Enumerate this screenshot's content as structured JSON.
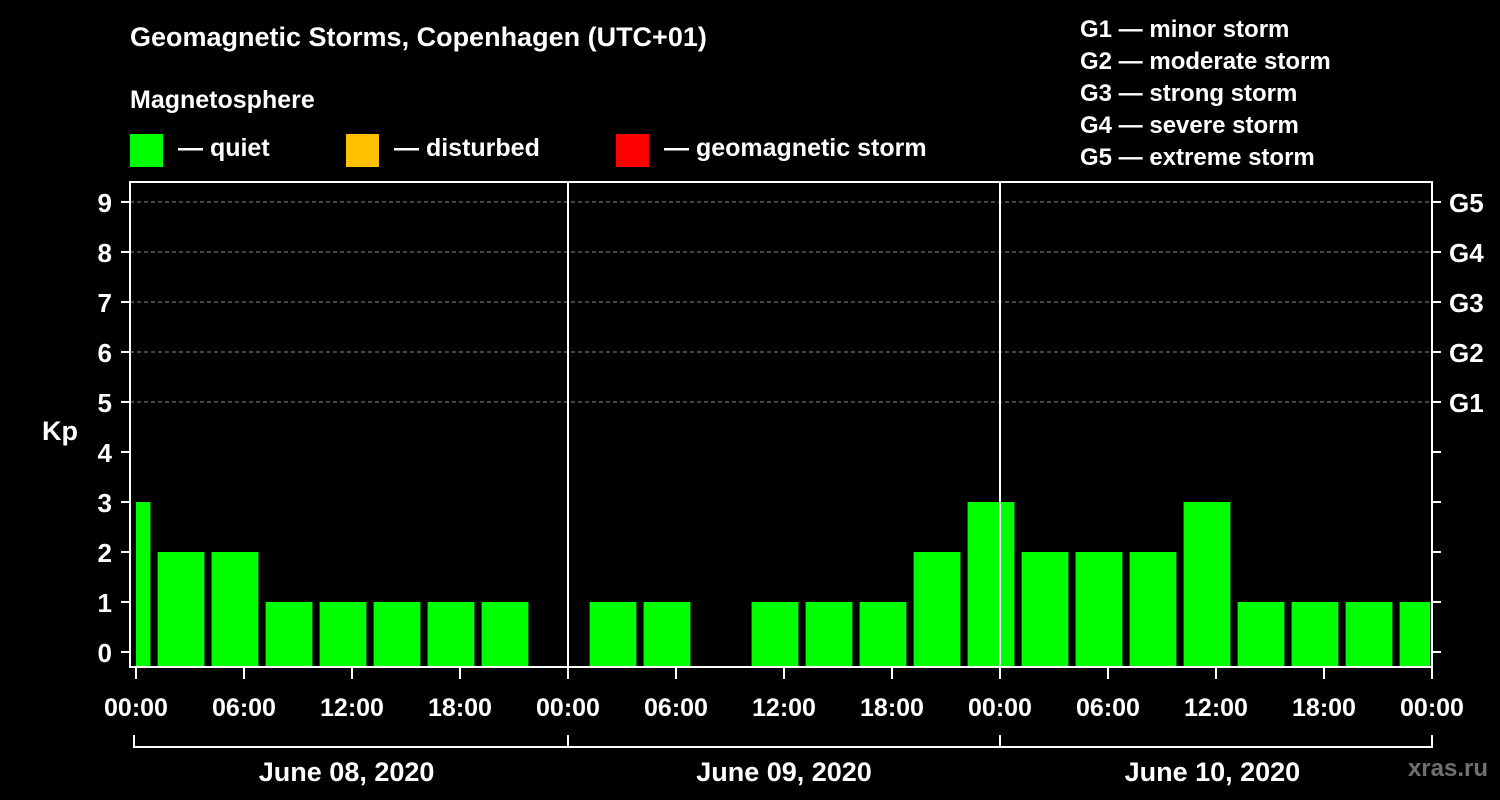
{
  "header": {
    "title": "Geomagnetic Storms, Copenhagen (UTC+01)",
    "subtitle": "Magnetosphere"
  },
  "legend": [
    {
      "label": "— quiet",
      "color": "#00ff00"
    },
    {
      "label": "— disturbed",
      "color": "#ffc000"
    },
    {
      "label": "— geomagnetic storm",
      "color": "#ff0000"
    }
  ],
  "storm_scale": [
    "G1 — minor storm",
    "G2 — moderate storm",
    "G3 — strong storm",
    "G4 — severe storm",
    "G5 — extreme storm"
  ],
  "watermark": "xras.ru",
  "chart_data": {
    "type": "bar",
    "title": "Geomagnetic Storms, Copenhagen (UTC+01)",
    "ylabel": "Kp",
    "ylim": [
      0,
      9
    ],
    "yticks": [
      0,
      1,
      2,
      3,
      4,
      5,
      6,
      7,
      8,
      9
    ],
    "right_axis": [
      {
        "kp": 5,
        "label": "G1"
      },
      {
        "kp": 6,
        "label": "G2"
      },
      {
        "kp": 7,
        "label": "G3"
      },
      {
        "kp": 8,
        "label": "G4"
      },
      {
        "kp": 9,
        "label": "G5"
      }
    ],
    "xlim_hours": [
      -0.6,
      71.6
    ],
    "day_boundaries_hours": [
      24,
      48
    ],
    "xticks": [
      {
        "hour": 0,
        "label": "00:00"
      },
      {
        "hour": 6,
        "label": "06:00"
      },
      {
        "hour": 12,
        "label": "12:00"
      },
      {
        "hour": 18,
        "label": "18:00"
      },
      {
        "hour": 24,
        "label": "00:00"
      },
      {
        "hour": 30,
        "label": "06:00"
      },
      {
        "hour": 36,
        "label": "12:00"
      },
      {
        "hour": 42,
        "label": "18:00"
      },
      {
        "hour": 48,
        "label": "00:00"
      },
      {
        "hour": 54,
        "label": "06:00"
      },
      {
        "hour": 60,
        "label": "12:00"
      },
      {
        "hour": 66,
        "label": "18:00"
      },
      {
        "hour": 72,
        "label": "00:00"
      }
    ],
    "days": [
      {
        "label": "June 08, 2020",
        "start": -0.6,
        "end": 24
      },
      {
        "label": "June 09, 2020",
        "start": 24,
        "end": 48
      },
      {
        "label": "June 10, 2020",
        "start": 48,
        "end": 71.6
      }
    ],
    "bar_color": "#00ff00",
    "bars": [
      {
        "start": 0,
        "end": 0.8,
        "kp": 3
      },
      {
        "start": 1.2,
        "end": 3.8,
        "kp": 2
      },
      {
        "start": 4.2,
        "end": 6.8,
        "kp": 2
      },
      {
        "start": 7.2,
        "end": 9.8,
        "kp": 1
      },
      {
        "start": 10.2,
        "end": 12.8,
        "kp": 1
      },
      {
        "start": 13.2,
        "end": 15.8,
        "kp": 1
      },
      {
        "start": 16.2,
        "end": 18.8,
        "kp": 1
      },
      {
        "start": 19.2,
        "end": 21.8,
        "kp": 1
      },
      {
        "start": 25.2,
        "end": 27.8,
        "kp": 1
      },
      {
        "start": 28.2,
        "end": 30.8,
        "kp": 1
      },
      {
        "start": 34.2,
        "end": 36.8,
        "kp": 1
      },
      {
        "start": 37.2,
        "end": 39.8,
        "kp": 1
      },
      {
        "start": 40.2,
        "end": 42.8,
        "kp": 1
      },
      {
        "start": 43.2,
        "end": 45.8,
        "kp": 2
      },
      {
        "start": 46.2,
        "end": 48.8,
        "kp": 3
      },
      {
        "start": 49.2,
        "end": 51.8,
        "kp": 2
      },
      {
        "start": 52.2,
        "end": 54.8,
        "kp": 2
      },
      {
        "start": 55.2,
        "end": 57.8,
        "kp": 2
      },
      {
        "start": 58.2,
        "end": 60.8,
        "kp": 3
      },
      {
        "start": 61.2,
        "end": 63.8,
        "kp": 1
      },
      {
        "start": 64.2,
        "end": 66.8,
        "kp": 1
      },
      {
        "start": 67.2,
        "end": 69.8,
        "kp": 1
      },
      {
        "start": 70.2,
        "end": 71.9,
        "kp": 1
      }
    ]
  }
}
